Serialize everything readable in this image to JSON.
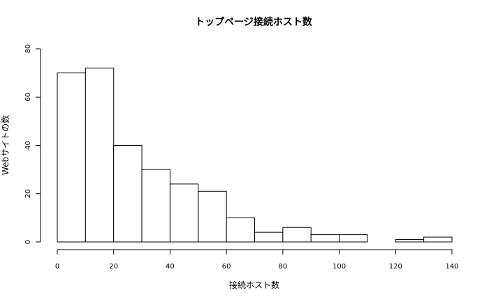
{
  "chart_data": {
    "type": "bar",
    "histogram": true,
    "title": "トップページ接続ホスト数",
    "xlabel": "接続ホスト数",
    "ylabel": "Webサイトの数",
    "bin_edges": [
      0,
      10,
      20,
      30,
      40,
      50,
      60,
      70,
      80,
      90,
      100,
      110,
      120,
      130,
      140
    ],
    "values": [
      70,
      72,
      40,
      30,
      24,
      21,
      10,
      4,
      6,
      3,
      3,
      0,
      1,
      2
    ],
    "xlim": [
      0,
      140
    ],
    "ylim": [
      0,
      80
    ],
    "xticks": [
      "0",
      "20",
      "40",
      "60",
      "80",
      "100",
      "120",
      "140"
    ],
    "yticks": [
      "0",
      "20",
      "40",
      "60",
      "80"
    ],
    "grid": false,
    "bar_fill": "#ffffff",
    "bar_stroke": "#000000"
  }
}
